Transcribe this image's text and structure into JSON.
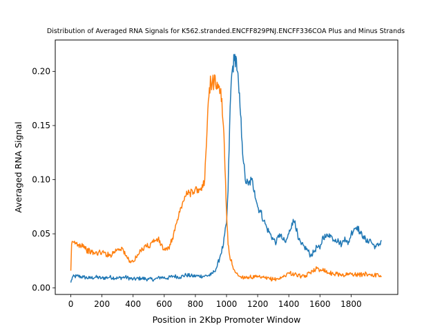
{
  "chart_data": {
    "type": "line",
    "title": "Distribution of Averaged RNA Signals for K562.stranded.ENCFF829PNJ.ENCFF336COA Plus and Minus Strands",
    "xlabel": "Position in 2Kbp Promoter Window",
    "ylabel": "Averaged RNA Signal",
    "xlim": [
      -100,
      2100
    ],
    "ylim": [
      -0.006,
      0.229
    ],
    "xticks": [
      0,
      200,
      400,
      600,
      800,
      1000,
      1200,
      1400,
      1600,
      1800
    ],
    "yticks": [
      0.0,
      0.05,
      0.1,
      0.15,
      0.2
    ],
    "ytick_labels": [
      "0.00",
      "0.05",
      "0.10",
      "0.15",
      "0.20"
    ],
    "grid": false,
    "series": [
      {
        "color": "#1f77b4",
        "x": [
          0,
          10,
          40,
          80,
          120,
          160,
          200,
          250,
          300,
          350,
          400,
          450,
          500,
          540,
          580,
          620,
          660,
          700,
          740,
          780,
          820,
          860,
          900,
          920,
          940,
          960,
          980,
          1000,
          1010,
          1020,
          1030,
          1040,
          1050,
          1060,
          1070,
          1080,
          1090,
          1100,
          1110,
          1120,
          1140,
          1160,
          1180,
          1200,
          1220,
          1240,
          1260,
          1280,
          1300,
          1320,
          1340,
          1360,
          1380,
          1400,
          1420,
          1440,
          1460,
          1480,
          1500,
          1520,
          1540,
          1560,
          1580,
          1600,
          1620,
          1640,
          1660,
          1680,
          1700,
          1720,
          1740,
          1760,
          1780,
          1800,
          1820,
          1840,
          1860,
          1880,
          1900,
          1920,
          1940,
          1960,
          1980,
          1995
        ],
        "y": [
          0.005,
          0.01,
          0.011,
          0.01,
          0.009,
          0.01,
          0.009,
          0.01,
          0.009,
          0.01,
          0.008,
          0.009,
          0.008,
          0.008,
          0.01,
          0.009,
          0.011,
          0.01,
          0.012,
          0.011,
          0.011,
          0.011,
          0.012,
          0.015,
          0.02,
          0.03,
          0.04,
          0.06,
          0.09,
          0.15,
          0.19,
          0.205,
          0.21,
          0.214,
          0.2,
          0.18,
          0.16,
          0.135,
          0.115,
          0.1,
          0.095,
          0.1,
          0.09,
          0.075,
          0.07,
          0.062,
          0.055,
          0.05,
          0.045,
          0.042,
          0.05,
          0.045,
          0.042,
          0.05,
          0.06,
          0.062,
          0.045,
          0.04,
          0.038,
          0.035,
          0.03,
          0.033,
          0.038,
          0.036,
          0.048,
          0.047,
          0.05,
          0.046,
          0.045,
          0.043,
          0.04,
          0.047,
          0.04,
          0.05,
          0.055,
          0.057,
          0.05,
          0.048,
          0.042,
          0.045,
          0.04,
          0.038,
          0.04,
          0.044
        ]
      },
      {
        "color": "#ff7f0e",
        "x": [
          0,
          5,
          20,
          50,
          80,
          100,
          150,
          200,
          250,
          300,
          330,
          350,
          380,
          400,
          420,
          440,
          460,
          480,
          500,
          520,
          540,
          560,
          580,
          600,
          620,
          640,
          660,
          680,
          700,
          720,
          740,
          760,
          780,
          800,
          820,
          840,
          860,
          870,
          880,
          890,
          900,
          910,
          920,
          930,
          940,
          950,
          960,
          970,
          980,
          990,
          1000,
          1010,
          1020,
          1040,
          1060,
          1080,
          1100,
          1150,
          1200,
          1250,
          1300,
          1350,
          1400,
          1450,
          1500,
          1550,
          1580,
          1600,
          1620,
          1650,
          1700,
          1750,
          1800,
          1850,
          1900,
          1950,
          1995
        ],
        "y": [
          0.016,
          0.04,
          0.042,
          0.04,
          0.04,
          0.035,
          0.032,
          0.033,
          0.03,
          0.036,
          0.037,
          0.03,
          0.025,
          0.024,
          0.028,
          0.032,
          0.036,
          0.04,
          0.038,
          0.042,
          0.044,
          0.045,
          0.04,
          0.035,
          0.035,
          0.04,
          0.05,
          0.06,
          0.07,
          0.08,
          0.085,
          0.088,
          0.09,
          0.092,
          0.088,
          0.09,
          0.1,
          0.13,
          0.165,
          0.185,
          0.19,
          0.192,
          0.19,
          0.188,
          0.19,
          0.185,
          0.18,
          0.175,
          0.15,
          0.11,
          0.07,
          0.04,
          0.03,
          0.02,
          0.014,
          0.011,
          0.01,
          0.01,
          0.01,
          0.009,
          0.008,
          0.009,
          0.014,
          0.012,
          0.01,
          0.016,
          0.018,
          0.016,
          0.018,
          0.014,
          0.013,
          0.012,
          0.013,
          0.012,
          0.013,
          0.012,
          0.011
        ]
      }
    ]
  }
}
